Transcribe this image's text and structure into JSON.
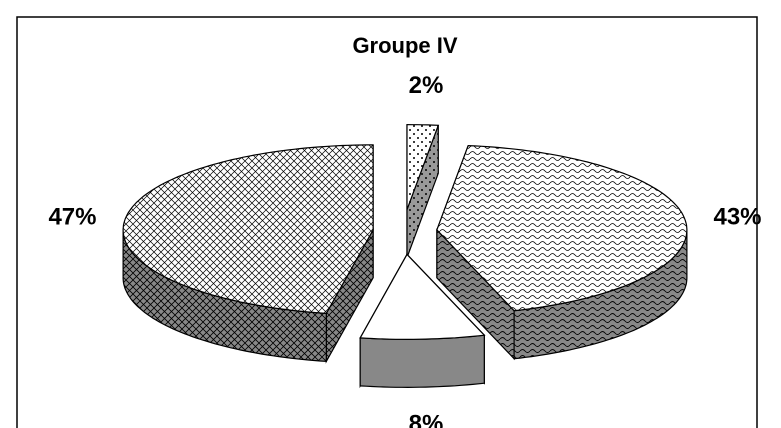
{
  "chart_data": {
    "type": "pie",
    "title": "Groupe IV",
    "values": [
      2,
      43,
      8,
      47
    ],
    "value_labels": [
      "2%",
      "43%",
      "8%",
      "47%"
    ]
  }
}
